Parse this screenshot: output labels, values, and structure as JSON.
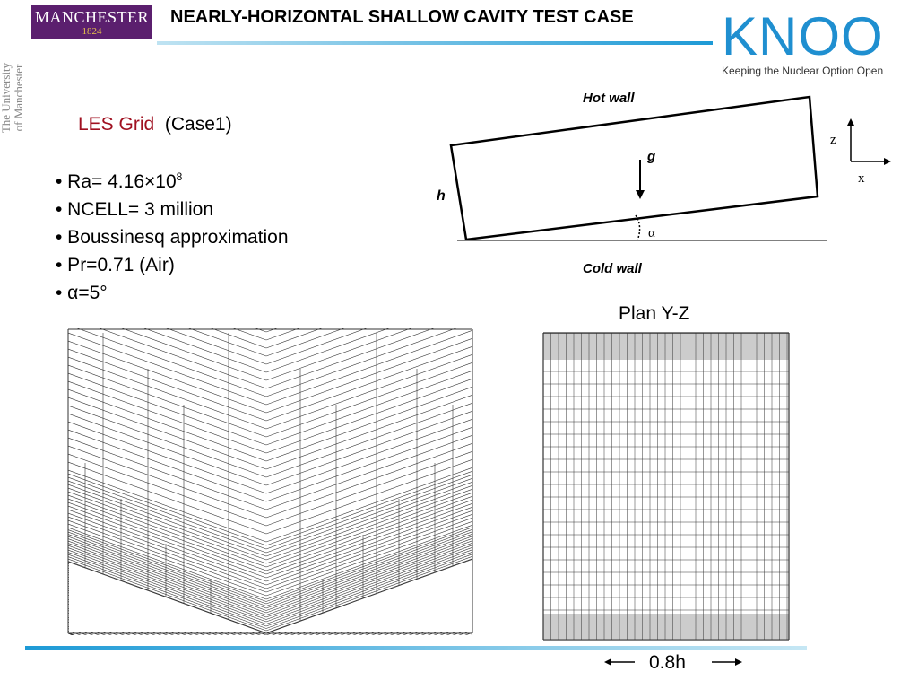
{
  "logos": {
    "manchester_name": "MANCHESTER",
    "manchester_year": "1824",
    "university_line1": "The University",
    "university_line2": "of Manchester",
    "knoo_word": "KNOO",
    "knoo_tagline": "Keeping the Nuclear Option Open"
  },
  "title": "NEARLY-HORIZONTAL SHALLOW CAVITY TEST CASE",
  "grid_heading": {
    "label": "LES Grid",
    "case": "(Case1)"
  },
  "bullets": {
    "ra_prefix": "• Ra= 4.16×10",
    "ra_exponent": "8",
    "ncell": "• NCELL= 3 million",
    "boussinesq": "• Boussinesq approximation",
    "pr": "• Pr=0.71 (Air)",
    "alpha": "• α=5°"
  },
  "diagram": {
    "hot_wall": "Hot wall",
    "cold_wall": "Cold wall",
    "gravity": "g",
    "height": "h",
    "angle": "α",
    "axis_z": "z",
    "axis_x": "x"
  },
  "plan_label": "Plan Y-Z",
  "scale_label": "0.8h",
  "colors": {
    "manchester_purple": "#5b1f6e",
    "knoo_blue": "#1f8fd0",
    "accent_red": "#a01020",
    "rule_blue": "#1d9ad6"
  }
}
